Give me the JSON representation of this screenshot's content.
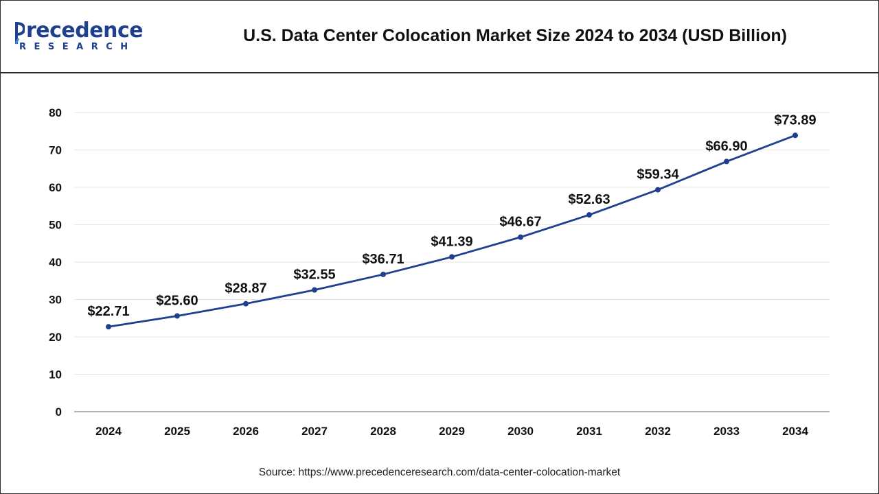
{
  "header": {
    "logo_word": "recedence",
    "logo_sub": "RESEARCH",
    "title": "U.S. Data Center Colocation Market Size 2024 to 2034 (USD Billion)"
  },
  "footer": {
    "source": "Source: https://www.precedenceresearch.com/data-center-colocation-market"
  },
  "colors": {
    "line": "#1f3f8f",
    "brand": "#1f3f8f",
    "grid": "#e6e6e6",
    "axis": "#9a9a9a"
  },
  "chart_data": {
    "type": "line",
    "title": "U.S. Data Center Colocation Market Size 2024 to 2034 (USD Billion)",
    "categories": [
      "2024",
      "2025",
      "2026",
      "2027",
      "2028",
      "2029",
      "2030",
      "2031",
      "2032",
      "2033",
      "2034"
    ],
    "series": [
      {
        "values": [
          22.71,
          25.6,
          28.87,
          32.55,
          36.71,
          41.39,
          46.67,
          52.63,
          59.34,
          66.9,
          73.89
        ],
        "labels": [
          "$22.71",
          "$25.60",
          "$28.87",
          "$32.55",
          "$36.71",
          "$41.39",
          "$46.67",
          "$52.63",
          "$59.34",
          "$66.90",
          "$73.89"
        ]
      }
    ],
    "yticks": [
      "0",
      "10",
      "20",
      "30",
      "40",
      "50",
      "60",
      "70",
      "80"
    ],
    "ylim": [
      0,
      80
    ],
    "grid": true,
    "legend": "none"
  }
}
